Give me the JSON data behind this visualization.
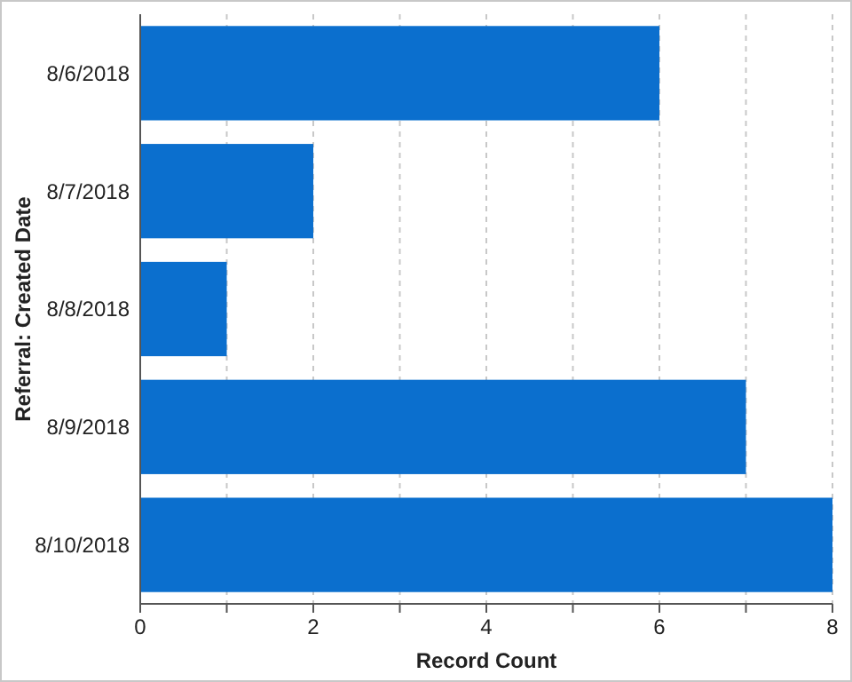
{
  "chart_data": {
    "type": "bar",
    "orientation": "horizontal",
    "xlabel": "Record Count",
    "ylabel": "Referral: Created Date",
    "categories": [
      "8/6/2018",
      "8/7/2018",
      "8/8/2018",
      "8/9/2018",
      "8/10/2018"
    ],
    "values": [
      6,
      2,
      1,
      7,
      8
    ],
    "color": "#0b6fce",
    "xlim": [
      0,
      8
    ],
    "xticks": [
      0,
      {
        "value": 1,
        "label": null
      },
      2,
      {
        "value": 3,
        "label": null
      },
      4,
      {
        "value": 5,
        "label": null
      },
      6,
      {
        "value": 7,
        "label": null
      },
      8
    ],
    "grid": "x"
  }
}
